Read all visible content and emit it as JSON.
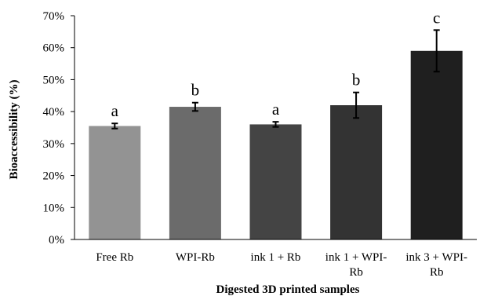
{
  "chart_data": {
    "type": "bar",
    "xlabel": "Digested 3D printed samples",
    "ylabel": "Bioaccessibility (%)",
    "ylim": [
      0,
      70
    ],
    "yticks": [
      0,
      10,
      20,
      30,
      40,
      50,
      60,
      70
    ],
    "ytick_suffix": "%",
    "grid": false,
    "categories": [
      [
        "Free Rb"
      ],
      [
        "WPI-Rb"
      ],
      [
        "ink 1 + Rb"
      ],
      [
        "ink 1 + WPI-",
        "Rb"
      ],
      [
        "ink 3 + WPI-",
        "Rb"
      ]
    ],
    "values": [
      35.5,
      41.5,
      36.0,
      42.0,
      59.0
    ],
    "errors": [
      0.8,
      1.3,
      0.8,
      4.0,
      6.5
    ],
    "labels": [
      "a",
      "b",
      "a",
      "b",
      "c"
    ],
    "colors": [
      "#939393",
      "#6b6b6b",
      "#444444",
      "#333333",
      "#1f1f1f"
    ]
  }
}
